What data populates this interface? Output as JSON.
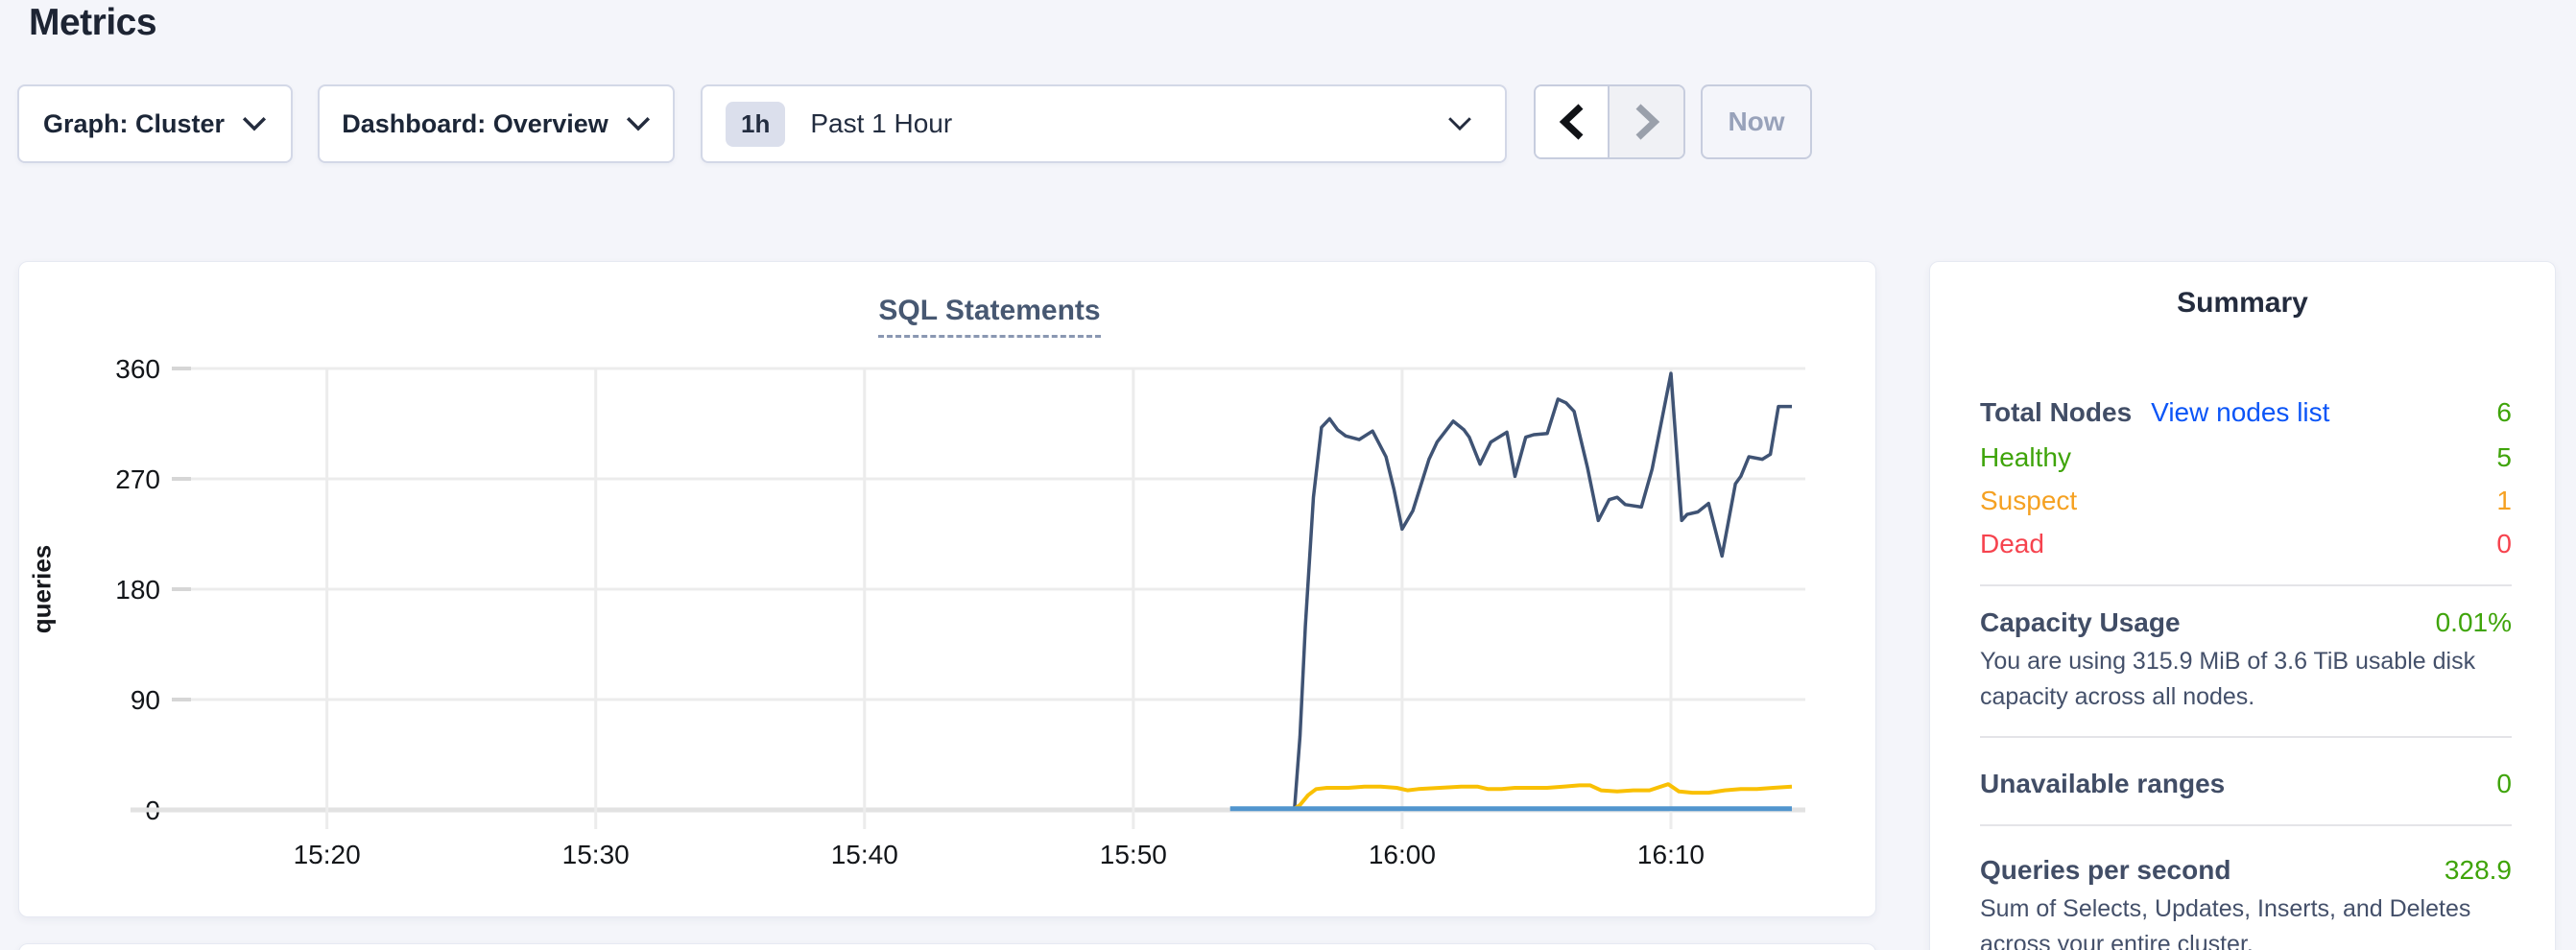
{
  "page": {
    "heading": "Metrics"
  },
  "toolbar": {
    "graph_dropdown_label": "Graph: Cluster",
    "dashboard_dropdown_label": "Dashboard: Overview",
    "time_window_badge": "1h",
    "time_window_label": "Past 1 Hour",
    "now_button_label": "Now"
  },
  "chart_data": {
    "type": "line",
    "title": "SQL Statements",
    "ylabel": "queries",
    "ylim": [
      0,
      360
    ],
    "y_ticks": [
      0,
      90,
      180,
      270,
      360
    ],
    "y_tick_labels": [
      "0",
      "90",
      "180",
      "270",
      "360"
    ],
    "x_domain_minutes_after_1500": [
      14.3,
      75.0
    ],
    "x_tick_minutes": [
      20,
      30,
      40,
      50,
      60,
      70
    ],
    "x_tick_labels": [
      "15:20",
      "15:30",
      "15:40",
      "15:50",
      "16:00",
      "16:10"
    ],
    "grid": true,
    "legend_visible": false,
    "series": [
      {
        "name": "navy-line",
        "color": "#3f5374",
        "width": 3.5,
        "points": [
          [
            56.0,
            2
          ],
          [
            56.2,
            60
          ],
          [
            56.4,
            150
          ],
          [
            56.7,
            255
          ],
          [
            57.0,
            312
          ],
          [
            57.3,
            319
          ],
          [
            57.6,
            310
          ],
          [
            57.9,
            305
          ],
          [
            58.4,
            302
          ],
          [
            58.9,
            309
          ],
          [
            59.4,
            288
          ],
          [
            59.7,
            261
          ],
          [
            60.0,
            229
          ],
          [
            60.4,
            244
          ],
          [
            61.0,
            286
          ],
          [
            61.3,
            300
          ],
          [
            61.9,
            317
          ],
          [
            62.3,
            310
          ],
          [
            62.5,
            304
          ],
          [
            62.9,
            282
          ],
          [
            63.3,
            300
          ],
          [
            63.9,
            308
          ],
          [
            64.2,
            272
          ],
          [
            64.6,
            304
          ],
          [
            64.9,
            306
          ],
          [
            65.4,
            307
          ],
          [
            65.8,
            335
          ],
          [
            66.1,
            332
          ],
          [
            66.4,
            325
          ],
          [
            66.9,
            279
          ],
          [
            67.3,
            236
          ],
          [
            67.7,
            253
          ],
          [
            68.0,
            255
          ],
          [
            68.3,
            249
          ],
          [
            68.9,
            247
          ],
          [
            69.3,
            278
          ],
          [
            70.0,
            356
          ],
          [
            70.4,
            236
          ],
          [
            70.6,
            241
          ],
          [
            71.0,
            243
          ],
          [
            71.4,
            250
          ],
          [
            71.9,
            207
          ],
          [
            72.4,
            266
          ],
          [
            72.6,
            272
          ],
          [
            72.9,
            288
          ],
          [
            73.4,
            286
          ],
          [
            73.7,
            290
          ],
          [
            74.0,
            329
          ],
          [
            74.5,
            329
          ]
        ]
      },
      {
        "name": "gold-line",
        "color": "#f9c004",
        "width": 4,
        "points": [
          [
            56.0,
            1
          ],
          [
            56.2,
            4
          ],
          [
            56.5,
            12
          ],
          [
            56.8,
            17
          ],
          [
            57.2,
            18
          ],
          [
            58.0,
            18
          ],
          [
            58.6,
            19
          ],
          [
            59.2,
            19
          ],
          [
            59.8,
            18
          ],
          [
            60.2,
            16
          ],
          [
            60.6,
            17
          ],
          [
            61.4,
            18
          ],
          [
            62.2,
            19
          ],
          [
            62.8,
            19
          ],
          [
            63.2,
            17
          ],
          [
            63.7,
            17
          ],
          [
            64.2,
            18
          ],
          [
            64.8,
            18
          ],
          [
            65.4,
            18
          ],
          [
            66.0,
            19
          ],
          [
            66.6,
            20
          ],
          [
            67.0,
            20
          ],
          [
            67.4,
            16
          ],
          [
            68.0,
            15
          ],
          [
            68.6,
            16
          ],
          [
            69.2,
            16
          ],
          [
            69.9,
            21
          ],
          [
            70.3,
            15
          ],
          [
            70.8,
            14
          ],
          [
            71.4,
            14
          ],
          [
            72.0,
            16
          ],
          [
            72.6,
            17
          ],
          [
            73.2,
            17
          ],
          [
            73.8,
            18
          ],
          [
            74.5,
            19
          ]
        ]
      },
      {
        "name": "blue-line",
        "color": "#5195ce",
        "width": 5,
        "points": [
          [
            53.6,
            1
          ],
          [
            74.5,
            1
          ]
        ]
      }
    ]
  },
  "summary": {
    "title": "Summary",
    "node_rows": [
      {
        "label": "Total Nodes",
        "link": "View nodes list",
        "value": "6"
      },
      {
        "label": "Healthy",
        "value": "5"
      },
      {
        "label": "Suspect",
        "value": "1"
      },
      {
        "label": "Dead",
        "value": "0"
      }
    ],
    "capacity": {
      "label": "Capacity Usage",
      "value": "0.01%",
      "description": "You are using 315.9 MiB of 3.6 TiB usable disk capacity across all nodes."
    },
    "unavailable_ranges": {
      "label": "Unavailable ranges",
      "value": "0"
    },
    "qps": {
      "label": "Queries per second",
      "value": "328.9",
      "description": "Sum of Selects, Updates, Inserts, and Deletes across your entire cluster."
    }
  },
  "colors": {
    "page_background": "#f4f5fa",
    "link_blue": "#0b55f7",
    "status_green": "#3fa40a",
    "status_orange": "#f5a122",
    "status_red": "#f6434e",
    "chart_navy": "#3f5374",
    "chart_gold": "#f9c004",
    "chart_blue": "#5195ce",
    "gridline": "#ececec"
  }
}
